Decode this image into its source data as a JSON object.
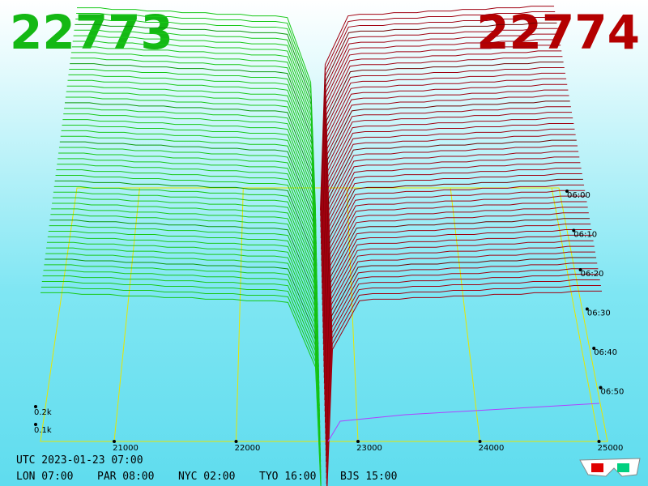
{
  "best_bid": "22773",
  "best_ask": "22774",
  "price_axis": {
    "ticks": [
      "21000",
      "22000",
      "23000",
      "24000",
      "25000"
    ]
  },
  "volume_axis": {
    "ticks": [
      "0.2k",
      "0.1k"
    ]
  },
  "time_axis": {
    "ticks": [
      "06:00",
      "06:10",
      "06:20",
      "06:30",
      "06:40",
      "06:50"
    ]
  },
  "footer": {
    "utc": "UTC 2023-01-23 07:00",
    "clocks": [
      "LON 07:00",
      "PAR 08:00",
      "NYC 02:00",
      "TYO 16:00",
      "BJS 15:00"
    ]
  }
}
